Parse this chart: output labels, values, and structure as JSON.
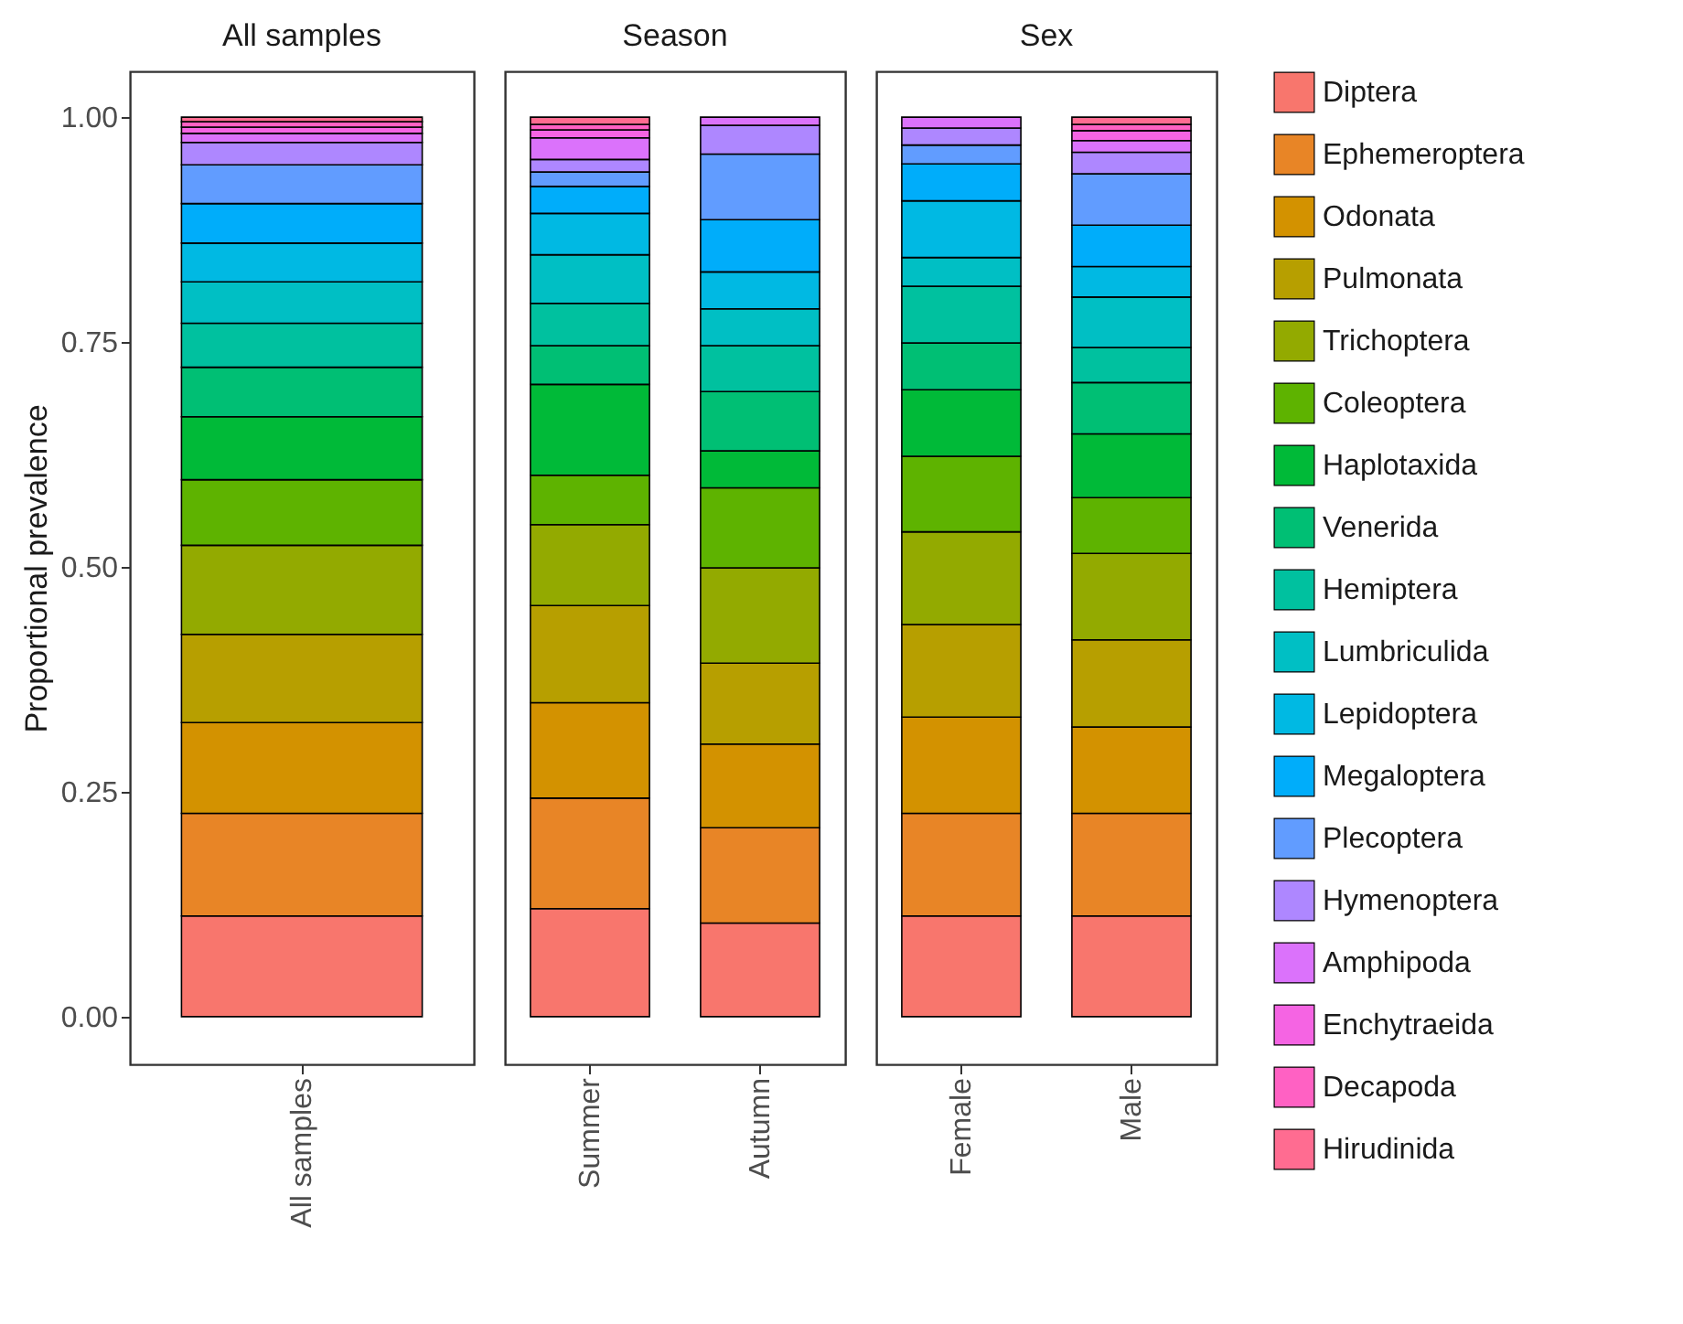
{
  "chart_data": [
    {
      "type": "bar",
      "stacked": true,
      "legend": "right",
      "title": "All samples",
      "ylabel": "Proportional prevalence",
      "categories": [
        "All samples"
      ],
      "ylim": [
        -0.053,
        1.051
      ],
      "yticks": [
        {
          "value": 0,
          "label": "0.00"
        },
        {
          "value": 0.25,
          "label": "0.25"
        },
        {
          "value": 0.5,
          "label": "0.50"
        },
        {
          "value": 0.75,
          "label": "0.75"
        },
        {
          "value": 1,
          "label": "1.00"
        }
      ],
      "series": [
        {
          "name": "Diptera",
          "color": "#f8766d",
          "values": [
            0.112
          ]
        },
        {
          "name": "Ephemeroptera",
          "color": "#e88526",
          "values": [
            0.114
          ]
        },
        {
          "name": "Odonata",
          "color": "#d39200",
          "values": [
            0.101
          ]
        },
        {
          "name": "Pulmonata",
          "color": "#b79f00",
          "values": [
            0.098
          ]
        },
        {
          "name": "Trichoptera",
          "color": "#93aa00",
          "values": [
            0.099
          ]
        },
        {
          "name": "Coleoptera",
          "color": "#5eb300",
          "values": [
            0.073
          ]
        },
        {
          "name": "Haplotaxida",
          "color": "#00ba38",
          "values": [
            0.07
          ]
        },
        {
          "name": "Venerida",
          "color": "#00bf74",
          "values": [
            0.055
          ]
        },
        {
          "name": "Hemiptera",
          "color": "#00c19f",
          "values": [
            0.049
          ]
        },
        {
          "name": "Lumbriculida",
          "color": "#00bfc4",
          "values": [
            0.046
          ]
        },
        {
          "name": "Lepidoptera",
          "color": "#00b9e3",
          "values": [
            0.043
          ]
        },
        {
          "name": "Megaloptera",
          "color": "#00adfa",
          "values": [
            0.044
          ]
        },
        {
          "name": "Plecoptera",
          "color": "#619cff",
          "values": [
            0.043
          ]
        },
        {
          "name": "Hymenoptera",
          "color": "#ae87ff",
          "values": [
            0.025
          ]
        },
        {
          "name": "Amphipoda",
          "color": "#db72fb",
          "values": [
            0.01
          ]
        },
        {
          "name": "Enchytraeida",
          "color": "#f564e3",
          "values": [
            0.007
          ]
        },
        {
          "name": "Decapoda",
          "color": "#ff61c3",
          "values": [
            0.006
          ]
        },
        {
          "name": "Hirudinida",
          "color": "#ff6c91",
          "values": [
            0.005
          ]
        }
      ]
    },
    {
      "type": "bar",
      "stacked": true,
      "title": "Season",
      "categories": [
        "Summer",
        "Autumn"
      ],
      "ylim": [
        -0.053,
        1.051
      ],
      "tick_labels": "x",
      "series": [
        {
          "name": "Diptera",
          "color": "#f8766d",
          "values": [
            0.12,
            0.104
          ]
        },
        {
          "name": "Ephemeroptera",
          "color": "#e88526",
          "values": [
            0.123,
            0.106
          ]
        },
        {
          "name": "Odonata",
          "color": "#d39200",
          "values": [
            0.106,
            0.093
          ]
        },
        {
          "name": "Pulmonata",
          "color": "#b79f00",
          "values": [
            0.108,
            0.09
          ]
        },
        {
          "name": "Trichoptera",
          "color": "#93aa00",
          "values": [
            0.09,
            0.106
          ]
        },
        {
          "name": "Coleoptera",
          "color": "#5eb300",
          "values": [
            0.055,
            0.089
          ]
        },
        {
          "name": "Haplotaxida",
          "color": "#00ba38",
          "values": [
            0.101,
            0.041
          ]
        },
        {
          "name": "Venerida",
          "color": "#00bf74",
          "values": [
            0.043,
            0.066
          ]
        },
        {
          "name": "Hemiptera",
          "color": "#00c19f",
          "values": [
            0.047,
            0.051
          ]
        },
        {
          "name": "Lumbriculida",
          "color": "#00bfc4",
          "values": [
            0.054,
            0.041
          ]
        },
        {
          "name": "Lepidoptera",
          "color": "#00b9e3",
          "values": [
            0.046,
            0.041
          ]
        },
        {
          "name": "Megaloptera",
          "color": "#00adfa",
          "values": [
            0.03,
            0.058
          ]
        },
        {
          "name": "Plecoptera",
          "color": "#619cff",
          "values": [
            0.016,
            0.073
          ]
        },
        {
          "name": "Hymenoptera",
          "color": "#ae87ff",
          "values": [
            0.014,
            0.032
          ]
        },
        {
          "name": "Amphipoda",
          "color": "#db72fb",
          "values": [
            0.024,
            0.009
          ]
        },
        {
          "name": "Enchytraeida",
          "color": "#f564e3",
          "values": [
            0.009,
            null
          ]
        },
        {
          "name": "Decapoda",
          "color": "#ff61c3",
          "values": [
            0.006,
            null
          ]
        },
        {
          "name": "Hirudinida",
          "color": "#ff6c91",
          "values": [
            0.008,
            null
          ]
        }
      ]
    },
    {
      "type": "bar",
      "stacked": true,
      "title": "Sex",
      "categories": [
        "Female",
        "Male"
      ],
      "ylim": [
        -0.053,
        1.051
      ],
      "tick_labels": "x",
      "series": [
        {
          "name": "Diptera",
          "color": "#f8766d",
          "values": [
            0.112,
            0.112
          ]
        },
        {
          "name": "Ephemeroptera",
          "color": "#e88526",
          "values": [
            0.114,
            0.114
          ]
        },
        {
          "name": "Odonata",
          "color": "#d39200",
          "values": [
            0.107,
            0.096
          ]
        },
        {
          "name": "Pulmonata",
          "color": "#b79f00",
          "values": [
            0.103,
            0.097
          ]
        },
        {
          "name": "Trichoptera",
          "color": "#93aa00",
          "values": [
            0.103,
            0.096
          ]
        },
        {
          "name": "Coleoptera",
          "color": "#5eb300",
          "values": [
            0.084,
            0.062
          ]
        },
        {
          "name": "Haplotaxida",
          "color": "#00ba38",
          "values": [
            0.074,
            0.071
          ]
        },
        {
          "name": "Venerida",
          "color": "#00bf74",
          "values": [
            0.052,
            0.057
          ]
        },
        {
          "name": "Hemiptera",
          "color": "#00c19f",
          "values": [
            0.063,
            0.039
          ]
        },
        {
          "name": "Lumbriculida",
          "color": "#00bfc4",
          "values": [
            0.032,
            0.056
          ]
        },
        {
          "name": "Lepidoptera",
          "color": "#00b9e3",
          "values": [
            0.063,
            0.034
          ]
        },
        {
          "name": "Megaloptera",
          "color": "#00adfa",
          "values": [
            0.041,
            0.046
          ]
        },
        {
          "name": "Plecoptera",
          "color": "#619cff",
          "values": [
            0.021,
            0.057
          ]
        },
        {
          "name": "Hymenoptera",
          "color": "#ae87ff",
          "values": [
            0.019,
            0.024
          ]
        },
        {
          "name": "Amphipoda",
          "color": "#db72fb",
          "values": [
            0.012,
            0.013
          ]
        },
        {
          "name": "Enchytraeida",
          "color": "#f564e3",
          "values": [
            null,
            0.011
          ]
        },
        {
          "name": "Decapoda",
          "color": "#ff61c3",
          "values": [
            null,
            0.007
          ]
        },
        {
          "name": "Hirudinida",
          "color": "#ff6c91",
          "values": [
            null,
            0.008
          ]
        }
      ]
    }
  ]
}
